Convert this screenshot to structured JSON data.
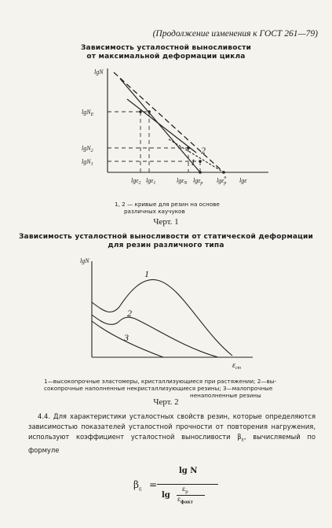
{
  "header": "(Продолжение изменения к ГОСТ 261—79)",
  "fig1": {
    "title_line1": "Зависимость усталостной выносливости",
    "title_line2": "от максимальной деформации цикла",
    "y_axis_label": "lgN",
    "y_ticks": [
      "lgN",
      "lgN",
      "lgN"
    ],
    "y_tick_subs": [
      "E",
      "2",
      "1"
    ],
    "x_ticks": [
      "lgε",
      "lgε",
      "lgε",
      "lgε",
      "lgε"
    ],
    "x_tick_subs": [
      "2",
      "1",
      "N",
      "p",
      "p"
    ],
    "x_tick_sups": [
      "",
      "",
      "",
      "",
      "н"
    ],
    "x_axis_label": "lgε",
    "curve_labels": [
      "2",
      "1"
    ],
    "caption_line1": "1, 2 — кривые для резин на основе",
    "caption_line2": "различных каучуков",
    "chert": "Черт. 1"
  },
  "fig2": {
    "title_line1": "Зависимость усталостной выносливости от статической деформации",
    "title_line2": "для резин различного типа",
    "y_axis_label": "lgN",
    "x_axis_label": "ε",
    "x_axis_sub": "ст",
    "curve_labels": [
      "1",
      "2",
      "3"
    ],
    "caption_line1": "1—высокопрочные эластомеры, кристаллизующиеся при растяжении; 2—вы-",
    "caption_line2": "сокопрочные наполненные некристаллизующиеся резины; 3—малопрочные",
    "caption_line3": "ненаполненные резины",
    "chert": "Черт. 2"
  },
  "paragraph": "4.4. Для характеристики усталостных свойств резин, которые определяются зависимостью показателей усталостной прочности от повторения нагружения, используют коэффициент усталостной выносливости β",
  "paragraph_sub": "ε",
  "paragraph_tail": ", вычисляемый по формуле",
  "formula": {
    "lhs": "β",
    "lhs_sub": "ε",
    "eq": "=",
    "numerator": "lg N",
    "den_lg": "lg",
    "den_top": "ε",
    "den_top_sub": "p",
    "den_bottom": "ε",
    "den_bottom_sub": "факт"
  }
}
